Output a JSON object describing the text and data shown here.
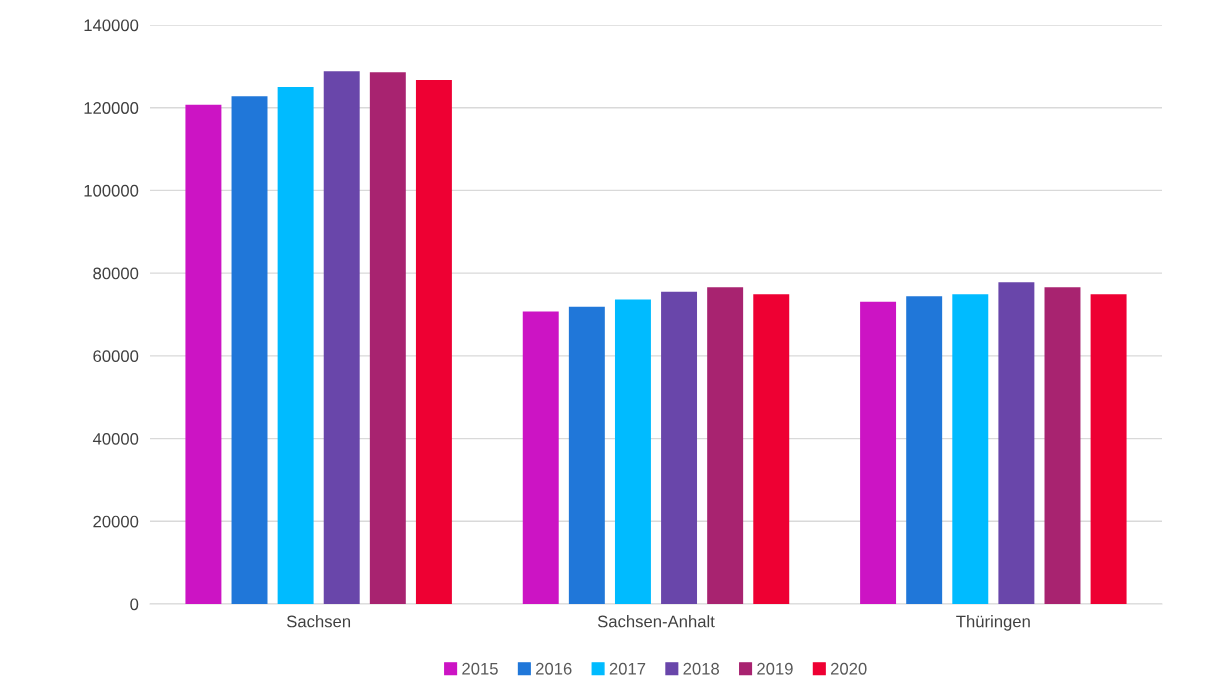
{
  "chart_data": {
    "type": "bar",
    "categories": [
      "Sachsen",
      "Sachsen-Anhalt",
      "Thüringen"
    ],
    "series": [
      {
        "name": "2015",
        "color": "#cc14c4",
        "values": [
          120700,
          70700,
          73100
        ]
      },
      {
        "name": "2016",
        "color": "#2077d9",
        "values": [
          122800,
          71900,
          74400
        ]
      },
      {
        "name": "2017",
        "color": "#00bbff",
        "values": [
          125000,
          73600,
          74900
        ]
      },
      {
        "name": "2018",
        "color": "#6946aa",
        "values": [
          128800,
          75500,
          77800
        ]
      },
      {
        "name": "2019",
        "color": "#a82370",
        "values": [
          128600,
          76600,
          76600
        ]
      },
      {
        "name": "2020",
        "color": "#ee0033",
        "values": [
          126700,
          74900,
          74900
        ]
      }
    ],
    "ylim": [
      0,
      140000
    ],
    "yticks": [
      0,
      20000,
      40000,
      60000,
      80000,
      100000,
      120000,
      140000
    ],
    "grid": "y",
    "legend": "bottom"
  }
}
